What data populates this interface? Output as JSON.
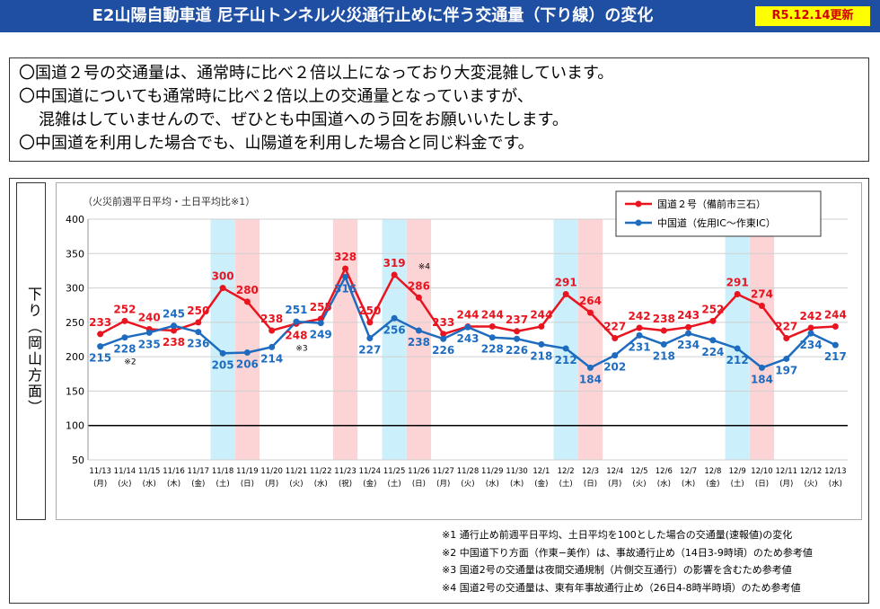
{
  "header": {
    "title": "E2山陽自動車道 尼子山トンネル火災通行止めに伴う交通量（下り線）の変化",
    "update_badge": "R5.12.14更新",
    "bg_color": "#1f4fa3",
    "badge_color": "#ffff00"
  },
  "notice": {
    "lines": [
      "〇国道２号の交通量は、通常時に比べ２倍以上になっており大変混雑しています。",
      "〇中国道についても通常時に比べ２倍以上の交通量となっていますが、",
      "混雑はしていませんので、ぜひとも中国道へのう回をお願いいたします。",
      "〇中国道を利用した場合でも、山陽道を利用した場合と同じ料金です。"
    ]
  },
  "side_label": "下り（岡山方面）",
  "chart_data": {
    "type": "line",
    "subtitle": "（火災前週平日平均・土日平均比※1）",
    "ylim": [
      50,
      400
    ],
    "yticks": [
      50,
      100,
      150,
      200,
      250,
      300,
      350,
      400
    ],
    "reference_line": 100,
    "categories": [
      "11/13",
      "11/14",
      "11/15",
      "11/16",
      "11/17",
      "11/18",
      "11/19",
      "11/20",
      "11/21",
      "11/22",
      "11/23",
      "11/24",
      "11/25",
      "11/26",
      "11/27",
      "11/28",
      "11/29",
      "11/30",
      "12/1",
      "12/2",
      "12/3",
      "12/4",
      "12/5",
      "12/6",
      "12/7",
      "12/8",
      "12/9",
      "12/10",
      "12/11",
      "12/12",
      "12/13"
    ],
    "weekdays": [
      "(月)",
      "(火)",
      "(水)",
      "(木)",
      "(金)",
      "(土)",
      "(日)",
      "(月)",
      "(火)",
      "(水)",
      "(祝)",
      "(金)",
      "(土)",
      "(日)",
      "(月)",
      "(火)",
      "(水)",
      "(木)",
      "(金)",
      "(土)",
      "(日)",
      "(月)",
      "(火)",
      "(水)",
      "(木)",
      "(金)",
      "(土)",
      "(日)",
      "(月)",
      "(火)",
      "(水)"
    ],
    "series": [
      {
        "name": "国道２号（備前市三石）",
        "color": "#e8141f",
        "values": [
          233,
          252,
          240,
          238,
          250,
          300,
          280,
          238,
          248,
          255,
          328,
          250,
          319,
          286,
          233,
          244,
          244,
          237,
          244,
          291,
          264,
          227,
          242,
          238,
          243,
          252,
          291,
          274,
          227,
          242,
          244
        ]
      },
      {
        "name": "中国道（佐用IC～作東IC）",
        "color": "#1e6cbf",
        "values": [
          215,
          228,
          235,
          245,
          236,
          205,
          206,
          214,
          251,
          249,
          316,
          227,
          256,
          238,
          226,
          243,
          228,
          226,
          218,
          212,
          184,
          202,
          231,
          218,
          234,
          224,
          212,
          184,
          197,
          234,
          217
        ]
      }
    ],
    "shading": {
      "blue_indices": [
        5,
        12,
        19,
        26
      ],
      "red_indices": [
        6,
        10,
        13,
        20,
        27
      ],
      "blue_color": "#ccf0fb",
      "red_color": "#fcd4d6"
    },
    "marks": [
      {
        "text": "※2",
        "index": 1
      },
      {
        "text": "※3",
        "index": 8
      },
      {
        "text": "※4",
        "index": 13
      }
    ]
  },
  "footnotes": [
    "※1 通行止め前週平日平均、土日平均を100とした場合の交通量(速報値)の変化",
    "※2 中国道下り方面（作東−美作）は、事故通行止め（14日3-9時頃）のため参考値",
    "※3 国道2号の交通量は夜間交通規制（片側交互通行）の影響を含むため参考値",
    "※4 国道2号の交通量は、東有年事故通行止め（26日4-8時半時頃）のため参考値"
  ]
}
